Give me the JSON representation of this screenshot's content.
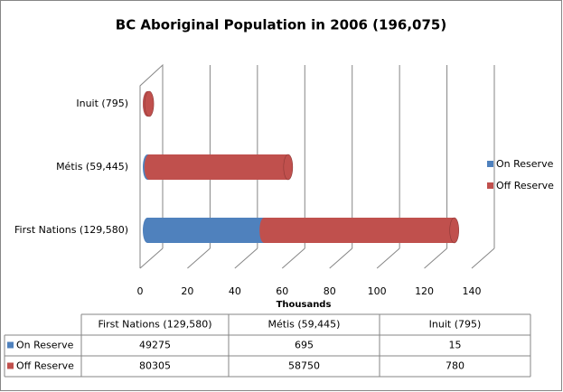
{
  "chart_data": {
    "type": "bar",
    "orientation": "horizontal",
    "stacked": true,
    "title": "BC Aboriginal Population in 2006 (196,075)",
    "x_label": "Thousands",
    "categories": [
      "First Nations (129,580)",
      "Métis (59,445)",
      "Inuit (795)"
    ],
    "series": [
      {
        "name": "On Reserve",
        "color": "#4f81bd",
        "values": [
          49.275,
          0.695,
          0.015
        ],
        "value_labels": [
          "49275",
          "695",
          "15"
        ]
      },
      {
        "name": "Off Reserve",
        "color": "#c0504d",
        "values": [
          80.305,
          58.75,
          0.78
        ],
        "value_labels": [
          "80305",
          "58750",
          "780"
        ]
      }
    ],
    "xlim": [
      0,
      140
    ],
    "xticks": [
      0,
      20,
      40,
      60,
      80,
      100,
      120,
      140
    ],
    "grid": true,
    "legend": "right",
    "data_table": true
  }
}
